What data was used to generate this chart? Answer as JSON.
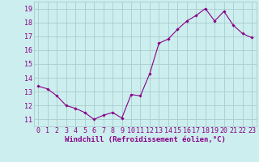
{
  "x": [
    0,
    1,
    2,
    3,
    4,
    5,
    6,
    7,
    8,
    9,
    10,
    11,
    12,
    13,
    14,
    15,
    16,
    17,
    18,
    19,
    20,
    21,
    22,
    23
  ],
  "y": [
    13.4,
    13.2,
    12.7,
    12.0,
    11.8,
    11.5,
    11.0,
    11.3,
    11.5,
    11.1,
    12.8,
    12.7,
    14.3,
    16.5,
    16.8,
    17.5,
    18.1,
    18.5,
    19.0,
    18.1,
    18.8,
    17.8,
    17.2,
    16.9
  ],
  "xlabel": "Windchill (Refroidissement éolien,°C)",
  "yticks": [
    11,
    12,
    13,
    14,
    15,
    16,
    17,
    18,
    19
  ],
  "xticks": [
    0,
    1,
    2,
    3,
    4,
    5,
    6,
    7,
    8,
    9,
    10,
    11,
    12,
    13,
    14,
    15,
    16,
    17,
    18,
    19,
    20,
    21,
    22,
    23
  ],
  "line_color": "#880088",
  "marker": "D",
  "marker_size": 1.8,
  "background_color": "#cceeee",
  "grid_color": "#aacccc",
  "ylim": [
    10.5,
    19.5
  ],
  "xlim": [
    -0.5,
    23.5
  ],
  "tick_label_color": "#880088",
  "xlabel_color": "#880088",
  "xlabel_fontsize": 6.5,
  "tick_fontsize": 6.0
}
